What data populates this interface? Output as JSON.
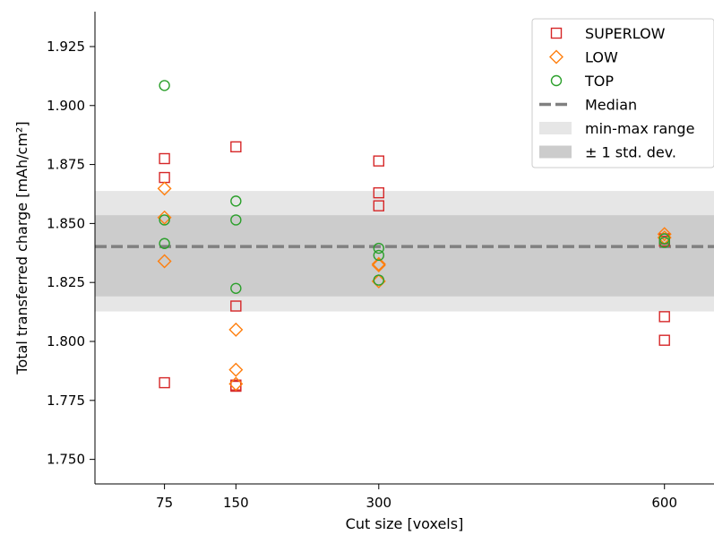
{
  "chart_data": {
    "type": "scatter",
    "xlabel": "Cut size [voxels]",
    "ylabel": "Total transferred charge  [mAh/cm²]",
    "x_ticks": [
      75,
      150,
      300,
      600
    ],
    "y_ticks": [
      1.75,
      1.775,
      1.8,
      1.825,
      1.85,
      1.875,
      1.9,
      1.925
    ],
    "y_tick_labels": [
      "1.750",
      "1.775",
      "1.800",
      "1.825",
      "1.850",
      "1.875",
      "1.900",
      "1.925"
    ],
    "xlim": [
      2,
      652
    ],
    "ylim": [
      1.7396,
      1.9398
    ],
    "grid": false,
    "legend_position": "top-right",
    "series": [
      {
        "name": "SUPERLOW",
        "marker": "square",
        "color": "#d62728",
        "points": [
          [
            75,
            1.8775
          ],
          [
            75,
            1.8695
          ],
          [
            75,
            1.7825
          ],
          [
            150,
            1.8825
          ],
          [
            150,
            1.815
          ],
          [
            150,
            1.7815
          ],
          [
            150,
            1.781
          ],
          [
            300,
            1.8765
          ],
          [
            300,
            1.863
          ],
          [
            300,
            1.8575
          ],
          [
            600,
            1.8435
          ],
          [
            600,
            1.8425
          ],
          [
            600,
            1.8105
          ],
          [
            600,
            1.8005
          ]
        ]
      },
      {
        "name": "LOW",
        "marker": "diamond",
        "color": "#ff7f0e",
        "points": [
          [
            75,
            1.8648
          ],
          [
            75,
            1.8525
          ],
          [
            75,
            1.834
          ],
          [
            150,
            1.805
          ],
          [
            150,
            1.788
          ],
          [
            150,
            1.782
          ],
          [
            300,
            1.8328
          ],
          [
            300,
            1.8323
          ],
          [
            300,
            1.8255
          ],
          [
            600,
            1.8455
          ],
          [
            600,
            1.844
          ]
        ]
      },
      {
        "name": "TOP",
        "marker": "circle",
        "color": "#2ca02c",
        "points": [
          [
            75,
            1.9085
          ],
          [
            75,
            1.8515
          ],
          [
            75,
            1.8415
          ],
          [
            150,
            1.8595
          ],
          [
            150,
            1.8515
          ],
          [
            150,
            1.8225
          ],
          [
            300,
            1.8395
          ],
          [
            300,
            1.8365
          ],
          [
            300,
            1.826
          ],
          [
            600,
            1.8435
          ],
          [
            600,
            1.842
          ]
        ]
      }
    ],
    "median": {
      "label": "Median",
      "value": 1.8402,
      "color": "#808080"
    },
    "minmax_band": {
      "label": "min-max range",
      "low": 1.8127,
      "high": 1.8638,
      "color": "#e6e6e6"
    },
    "std_band": {
      "label": "± 1 std. dev.",
      "low": 1.8191,
      "high": 1.8535,
      "color": "#cccccc"
    },
    "legend": [
      "SUPERLOW",
      "LOW",
      "TOP",
      "Median",
      "min-max range",
      "± 1 std. dev."
    ]
  }
}
